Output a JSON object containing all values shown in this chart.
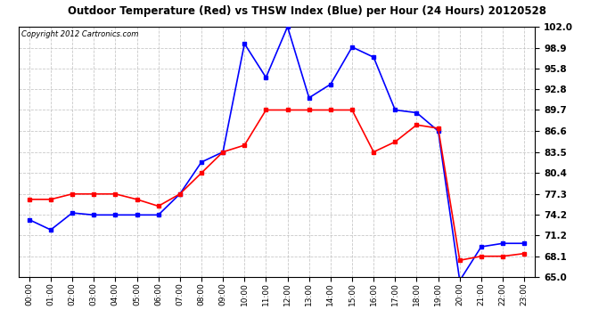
{
  "title": "Outdoor Temperature (Red) vs THSW Index (Blue) per Hour (24 Hours) 20120528",
  "copyright": "Copyright 2012 Cartronics.com",
  "hours": [
    "00:00",
    "01:00",
    "02:00",
    "03:00",
    "04:00",
    "05:00",
    "06:00",
    "07:00",
    "08:00",
    "09:00",
    "10:00",
    "11:00",
    "12:00",
    "13:00",
    "14:00",
    "15:00",
    "16:00",
    "17:00",
    "18:00",
    "19:00",
    "20:00",
    "21:00",
    "22:00",
    "23:00"
  ],
  "red_temp": [
    76.5,
    76.5,
    77.3,
    77.3,
    77.3,
    76.5,
    75.5,
    77.3,
    80.4,
    83.5,
    84.5,
    89.7,
    89.7,
    89.7,
    89.7,
    89.7,
    83.5,
    85.0,
    87.5,
    87.0,
    67.5,
    68.1,
    68.1,
    68.5
  ],
  "blue_thsw": [
    73.5,
    72.0,
    74.5,
    74.2,
    74.2,
    74.2,
    74.2,
    77.3,
    82.0,
    83.5,
    99.5,
    94.5,
    102.0,
    91.5,
    93.5,
    99.0,
    97.5,
    89.7,
    89.3,
    86.6,
    64.5,
    69.5,
    70.0,
    70.0
  ],
  "ylim": [
    65.0,
    102.0
  ],
  "yticks": [
    65.0,
    68.1,
    71.2,
    74.2,
    77.3,
    80.4,
    83.5,
    86.6,
    89.7,
    92.8,
    95.8,
    98.9,
    102.0
  ],
  "bg_color": "#ffffff",
  "grid_color": "#bbbbbb",
  "title_color": "#000000",
  "copyright_color": "#000000",
  "line_width": 1.2,
  "marker_size": 3.0
}
